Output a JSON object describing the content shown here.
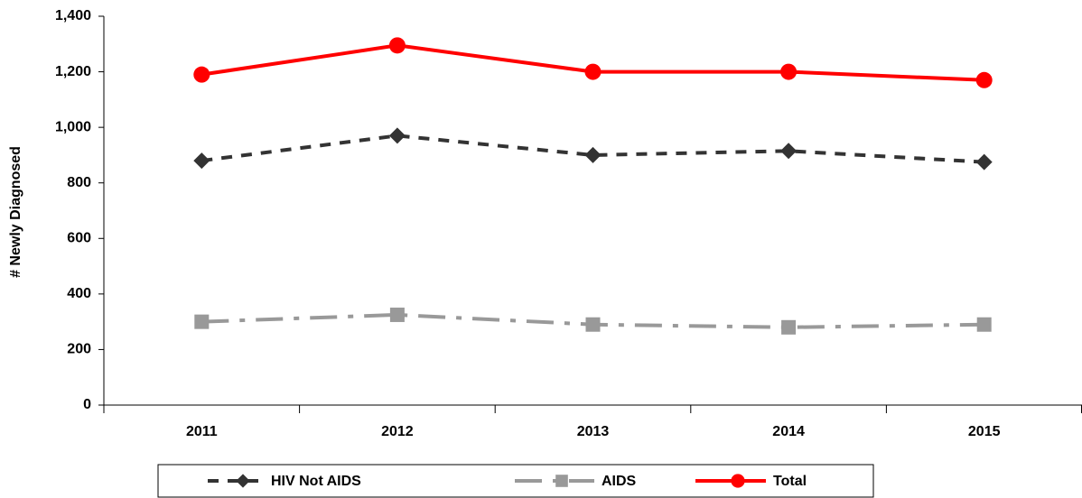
{
  "chart_data": {
    "type": "line",
    "y_label": "# Newly Diagnosed",
    "categories": [
      "2011",
      "2012",
      "2013",
      "2014",
      "2015"
    ],
    "series": [
      {
        "name": "HIV Not AIDS",
        "color": "#333333",
        "dash": "12 10",
        "marker": "diamond",
        "values": [
          880,
          970,
          900,
          915,
          875
        ]
      },
      {
        "name": "AIDS",
        "color": "#999999",
        "dash": "30 12 6 12",
        "marker": "square",
        "values": [
          300,
          325,
          290,
          280,
          290
        ]
      },
      {
        "name": "Total",
        "color": "#ff0000",
        "dash": "none",
        "marker": "circle",
        "values": [
          1190,
          1295,
          1200,
          1200,
          1170
        ]
      }
    ],
    "ylim": [
      0,
      1400
    ],
    "yticks": [
      0,
      200,
      400,
      600,
      800,
      {
        "value": 1000,
        "label": "1,000"
      },
      {
        "value": 1200,
        "label": "1,200"
      },
      {
        "value": 1400,
        "label": "1,400"
      }
    ],
    "grid": false
  }
}
